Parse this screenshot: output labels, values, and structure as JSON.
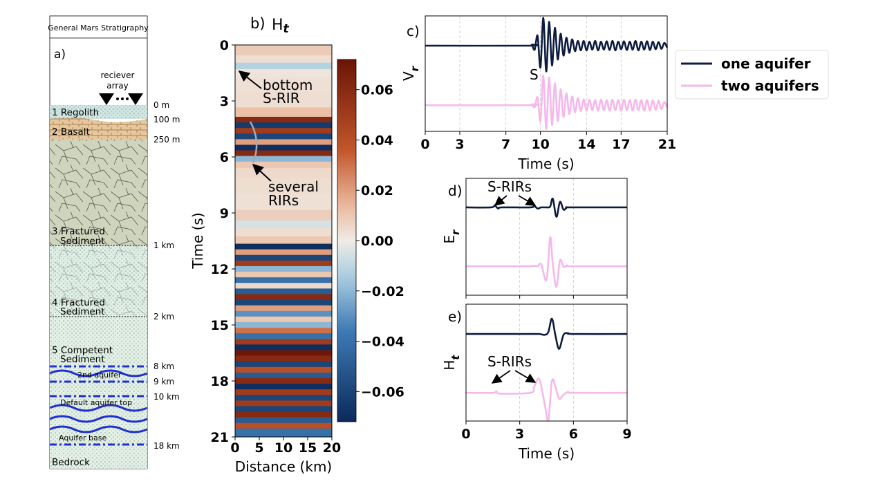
{
  "stratigraphy": {
    "title": "General Mars Stratigraphy",
    "panel_label": "a)",
    "receiver_label": [
      "reciever",
      "array"
    ],
    "layers": [
      {
        "lines": [
          "1 Regolith"
        ]
      },
      {
        "lines": [
          "2 Basalt"
        ]
      },
      {
        "lines": [
          "3 Fractured",
          "Sediment"
        ]
      },
      {
        "lines": [
          "4 Fractured",
          "Sediment"
        ]
      },
      {
        "lines": [
          "5 Competent",
          "Sediment"
        ]
      },
      {
        "lines": [
          "2nd aquifer"
        ]
      },
      {
        "lines": [
          "Default aquifer top"
        ]
      },
      {
        "lines": [
          "Aquifer base"
        ]
      },
      {
        "lines": [
          "Bedrock"
        ]
      }
    ],
    "depths": [
      "0 m",
      "100 m",
      "250 m",
      "1 km",
      "2 km",
      "8 km",
      "9 km",
      "10 km",
      "18 km"
    ]
  },
  "chart_data": [
    {
      "type": "heatmap",
      "panel_label": "b)",
      "title": "H",
      "title_subscript": "t",
      "xlabel": "Distance (km)",
      "ylabel": "Time (s)",
      "xlim": [
        0,
        20
      ],
      "xticks": [
        0,
        5,
        10,
        15,
        20
      ],
      "ylim": [
        21,
        0
      ],
      "yticks": [
        0,
        3,
        6,
        9,
        12,
        15,
        18,
        21
      ],
      "y": [
        0.3,
        0.8,
        1.1,
        1.5,
        2.0,
        3.0,
        3.7,
        4.0,
        4.3,
        4.6,
        4.9,
        5.2,
        5.5,
        5.8,
        6.1,
        6.4,
        6.8,
        7.5,
        8.5,
        9.2,
        9.6,
        10.0,
        10.5,
        10.8,
        11.1,
        11.4,
        11.7,
        12.0,
        12.3,
        12.6,
        12.9,
        13.2,
        13.5,
        13.8,
        14.1,
        14.4,
        14.7,
        15.0,
        15.3,
        15.6,
        15.9,
        16.2,
        16.5,
        16.8,
        17.1,
        17.4,
        17.7,
        18.0,
        18.3,
        18.6,
        18.9,
        19.2,
        19.5,
        19.8,
        20.1,
        20.4,
        20.7
      ],
      "values": [
        0.009,
        0.004,
        -0.012,
        0.002,
        0.003,
        0.004,
        0.012,
        0.06,
        -0.065,
        0.05,
        -0.06,
        0.02,
        -0.07,
        0.06,
        -0.02,
        0.01,
        0.005,
        0.004,
        0.003,
        0.008,
        -0.005,
        0.004,
        0.01,
        -0.07,
        0.02,
        -0.06,
        0.05,
        -0.02,
        0.01,
        -0.04,
        0.005,
        -0.05,
        0.06,
        -0.06,
        0.02,
        -0.03,
        0.01,
        -0.02,
        0.03,
        -0.04,
        0.05,
        -0.07,
        0.07,
        0.06,
        -0.06,
        0.04,
        -0.05,
        0.06,
        -0.07,
        0.05,
        -0.06,
        0.05,
        -0.06,
        0.06,
        -0.05,
        0.04,
        -0.04
      ],
      "clim": [
        -0.072,
        0.072
      ],
      "cticks": [
        0.06,
        0.04,
        0.02,
        {
          "value": 0,
          "label": "0.00"
        },
        {
          "value": -0.02,
          "label": "−0.02"
        },
        {
          "value": -0.04,
          "label": "−0.04"
        },
        {
          "value": -0.06,
          "label": "−0.06"
        }
      ],
      "annotations": [
        {
          "lines": [
            "bottom",
            "S-RIR"
          ]
        },
        {
          "lines": [
            "several",
            "RIRs"
          ]
        }
      ]
    },
    {
      "type": "line",
      "panel_label": "c)",
      "ylabel": "V",
      "ylabel_subscript": "r",
      "xlabel": "Time (s)",
      "xlim": [
        0,
        21
      ],
      "xticks": [
        0,
        3,
        7,
        10,
        14,
        17,
        21
      ],
      "ylim": [
        -0.66,
        2.25
      ],
      "grid": true,
      "tick_labels": true,
      "legend": "right",
      "x": [
        0,
        9,
        9.25,
        9.5,
        9.75,
        10,
        10.25,
        10.5,
        10.75,
        11,
        11.25,
        11.5,
        11.75,
        12,
        12.25,
        12.5,
        12.75,
        13,
        13.25,
        13.5,
        13.75,
        14,
        14.25,
        14.5,
        14.75,
        15,
        15.25,
        15.5,
        15.75,
        16,
        16.25,
        16.5,
        16.75,
        17,
        17.25,
        17.5,
        17.75,
        18,
        18.25,
        18.5,
        18.75,
        19,
        19.25,
        19.5,
        19.75,
        20,
        20.25,
        20.5,
        20.75,
        21
      ],
      "series": [
        {
          "name": "one aquifer",
          "color": "#0d1b3e",
          "values": [
            1.5,
            1.5,
            1.52,
            1.4,
            1.75,
            0.95,
            2.2,
            0.85,
            2.1,
            1.0,
            1.95,
            1.15,
            1.8,
            1.25,
            1.7,
            1.32,
            1.66,
            1.36,
            1.62,
            1.38,
            1.62,
            1.38,
            1.6,
            1.4,
            1.62,
            1.38,
            1.6,
            1.4,
            1.61,
            1.39,
            1.62,
            1.38,
            1.6,
            1.41,
            1.61,
            1.39,
            1.6,
            1.4,
            1.62,
            1.38,
            1.6,
            1.4,
            1.61,
            1.39,
            1.6,
            1.41,
            1.59,
            1.42,
            1.57,
            1.45
          ]
        },
        {
          "name": "two aquifers",
          "color": "#f6b8ea",
          "values": [
            0,
            0,
            0.02,
            -0.05,
            0.2,
            -0.4,
            0.75,
            -0.6,
            0.7,
            -0.5,
            0.55,
            -0.4,
            0.4,
            -0.3,
            0.3,
            -0.22,
            0.22,
            -0.18,
            0.18,
            -0.15,
            0.15,
            -0.14,
            0.14,
            -0.13,
            0.13,
            -0.14,
            0.14,
            -0.13,
            0.13,
            -0.14,
            0.14,
            -0.13,
            0.13,
            -0.14,
            0.14,
            -0.13,
            0.13,
            -0.14,
            0.14,
            -0.13,
            0.13,
            -0.14,
            0.13,
            -0.13,
            0.12,
            -0.12,
            0.11,
            -0.1,
            0.08,
            -0.06
          ]
        }
      ],
      "annotations": [
        {
          "text": "S"
        }
      ]
    },
    {
      "type": "line",
      "panel_label": "d)",
      "ylabel": "E",
      "ylabel_subscript": "r",
      "xlim": [
        0,
        9
      ],
      "xticks": [
        0,
        3,
        6,
        9
      ],
      "ylim": [
        -0.74,
        2.24
      ],
      "grid": true,
      "tick_labels": false,
      "x": [
        0,
        1.4,
        1.6,
        1.8,
        2.0,
        3.6,
        3.8,
        4.0,
        4.2,
        4.5,
        4.7,
        4.85,
        5.05,
        5.25,
        5.45,
        5.65,
        5.9,
        9
      ],
      "series": [
        {
          "color": "#0d1b3e",
          "values": [
            1.5,
            1.5,
            1.55,
            1.47,
            1.5,
            1.5,
            1.54,
            1.47,
            1.5,
            1.5,
            1.52,
            1.72,
            1.26,
            1.64,
            1.44,
            1.5,
            1.5,
            1.5
          ]
        },
        {
          "color": "#f6b8ea",
          "values": [
            0,
            0,
            0,
            0,
            0,
            0,
            0.01,
            0,
            0.05,
            -0.35,
            0.74,
            0.05,
            -0.53,
            0.15,
            -0.02,
            0.02,
            0,
            0
          ]
        }
      ],
      "annotations": [
        {
          "text": "S-RIRs"
        }
      ]
    },
    {
      "type": "line",
      "panel_label": "e)",
      "ylabel": "H",
      "ylabel_subscript": "t",
      "xlabel": "Time (s)",
      "xlim": [
        0,
        9
      ],
      "xticks": [
        0,
        3,
        6,
        9
      ],
      "ylim": [
        -0.72,
        2.26
      ],
      "grid": true,
      "tick_labels": true,
      "x": [
        0,
        1.5,
        1.7,
        1.9,
        3.6,
        3.8,
        4.1,
        4.4,
        4.6,
        4.8,
        5.0,
        5.2,
        5.45,
        5.7,
        6.0,
        9
      ],
      "series": [
        {
          "color": "#0d1b3e",
          "values": [
            1.5,
            1.5,
            1.5,
            1.5,
            1.5,
            1.5,
            1.5,
            1.48,
            1.55,
            1.89,
            1.45,
            1.12,
            1.48,
            1.52,
            1.5,
            1.5
          ]
        },
        {
          "color": "#f6b8ea",
          "values": [
            0,
            0,
            0.04,
            -0.02,
            0,
            0.15,
            0.35,
            -0.3,
            -0.69,
            0.3,
            0.15,
            -0.15,
            -0.05,
            0.02,
            0,
            0
          ]
        }
      ],
      "annotations": [
        {
          "text": "S-RIRs"
        }
      ]
    }
  ]
}
